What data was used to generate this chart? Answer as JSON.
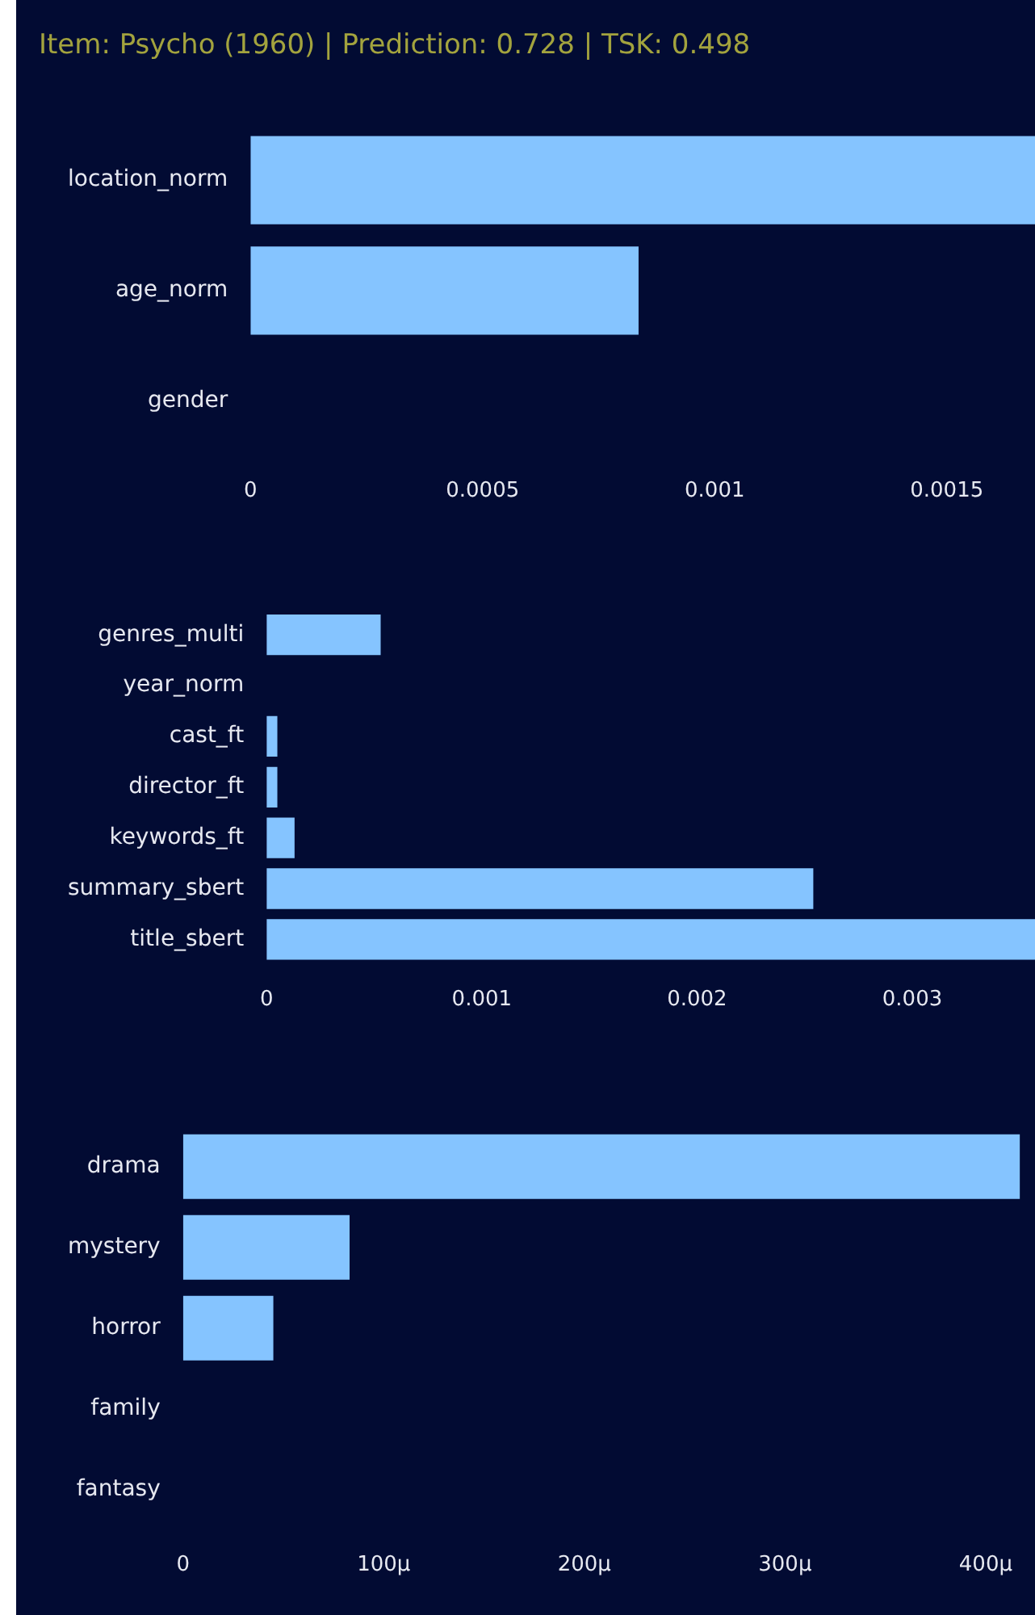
{
  "chart_data": [
    {
      "type": "bar",
      "orientation": "horizontal",
      "title": "Item: Psycho (1960) | Prediction: 0.728 | TSK: 0.498",
      "categories": [
        "location_norm",
        "age_norm",
        "gender"
      ],
      "values": [
        0.00169,
        0.000836,
        0
      ],
      "color": "#85c4ff",
      "xlim": [
        0,
        0.00169
      ],
      "xticks": [
        0,
        0.0005,
        0.001,
        0.0015
      ]
    },
    {
      "type": "bar",
      "orientation": "horizontal",
      "categories": [
        "genres_multi",
        "year_norm",
        "cast_ft",
        "director_ft",
        "keywords_ft",
        "summary_sbert",
        "title_sbert"
      ],
      "values": [
        0.00053,
        0,
        5e-05,
        5e-05,
        0.00013,
        0.00254,
        0.00357
      ],
      "color": "#85c4ff",
      "xlim": [
        0,
        0.00357
      ],
      "xticks": [
        0,
        0.001,
        0.002,
        0.003
      ]
    },
    {
      "type": "bar",
      "orientation": "horizontal",
      "categories": [
        "drama",
        "mystery",
        "horror",
        "family",
        "fantasy"
      ],
      "values": [
        417,
        83,
        45,
        0,
        0
      ],
      "color": "#85c4ff",
      "xlim": [
        0,
        424
      ],
      "xticks": [
        0,
        {
          "value": 100,
          "label": "100μ"
        },
        {
          "value": 200,
          "label": "200μ"
        },
        {
          "value": 300,
          "label": "300μ"
        },
        {
          "value": 400,
          "label": "400μ"
        }
      ]
    }
  ]
}
